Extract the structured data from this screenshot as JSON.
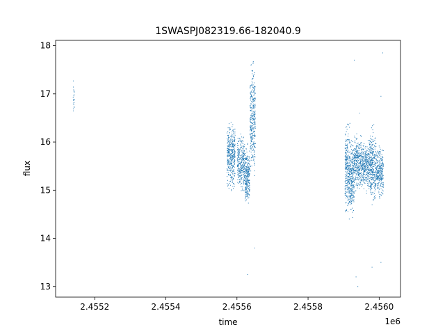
{
  "chart_data": {
    "type": "scatter",
    "title": "1SWASPJ082319.66-182040.9",
    "xlabel": "time",
    "ylabel": "flux",
    "x_offset_label": "1e6",
    "xlim": [
      2.45509,
      2.45606
    ],
    "ylim": [
      12.78,
      18.11
    ],
    "x_ticks": [
      2.4552,
      2.4554,
      2.4556,
      2.4558,
      2.456
    ],
    "x_tick_labels": [
      "2.4552",
      "2.4554",
      "2.4556",
      "2.4558",
      "2.4560"
    ],
    "y_ticks": [
      13,
      14,
      15,
      16,
      17,
      18
    ],
    "y_tick_labels": [
      "13",
      "14",
      "15",
      "16",
      "17",
      "18"
    ],
    "grid": false,
    "marker_color": "#1f77b4",
    "clusters": [
      {
        "x_start": 2.455139,
        "x_end": 2.455143,
        "y_low": 16.4,
        "y_high": 17.4,
        "n": 20
      },
      {
        "x_start": 2.455572,
        "x_end": 2.455595,
        "y_low": 14.95,
        "y_high": 16.5,
        "n": 380
      },
      {
        "x_start": 2.455601,
        "x_end": 2.455622,
        "y_low": 14.85,
        "y_high": 16.2,
        "n": 300
      },
      {
        "x_start": 2.455623,
        "x_end": 2.455636,
        "y_low": 14.55,
        "y_high": 16.0,
        "n": 260
      },
      {
        "x_start": 2.455637,
        "x_end": 2.455652,
        "y_low": 15.1,
        "y_high": 17.9,
        "n": 340
      },
      {
        "x_start": 2.455904,
        "x_end": 2.455918,
        "y_low": 14.35,
        "y_high": 16.5,
        "n": 300
      },
      {
        "x_start": 2.455918,
        "x_end": 2.45593,
        "y_low": 14.4,
        "y_high": 16.2,
        "n": 240
      },
      {
        "x_start": 2.45593,
        "x_end": 2.45595,
        "y_low": 14.9,
        "y_high": 16.2,
        "n": 300
      },
      {
        "x_start": 2.45595,
        "x_end": 2.455972,
        "y_low": 14.9,
        "y_high": 16.1,
        "n": 320
      },
      {
        "x_start": 2.455972,
        "x_end": 2.45599,
        "y_low": 14.6,
        "y_high": 16.4,
        "n": 320
      },
      {
        "x_start": 2.45599,
        "x_end": 2.456012,
        "y_low": 14.8,
        "y_high": 16.0,
        "n": 300
      }
    ],
    "outliers": [
      {
        "x": 2.45565,
        "y": 13.8
      },
      {
        "x": 2.45563,
        "y": 13.25
      },
      {
        "x": 2.45593,
        "y": 17.7
      },
      {
        "x": 2.455935,
        "y": 13.2
      },
      {
        "x": 2.455925,
        "y": 15.55
      },
      {
        "x": 2.45601,
        "y": 17.85
      },
      {
        "x": 2.456005,
        "y": 13.5
      },
      {
        "x": 2.45594,
        "y": 13.0
      },
      {
        "x": 2.455945,
        "y": 16.6
      },
      {
        "x": 2.45598,
        "y": 13.4
      },
      {
        "x": 2.456005,
        "y": 16.95
      }
    ]
  }
}
